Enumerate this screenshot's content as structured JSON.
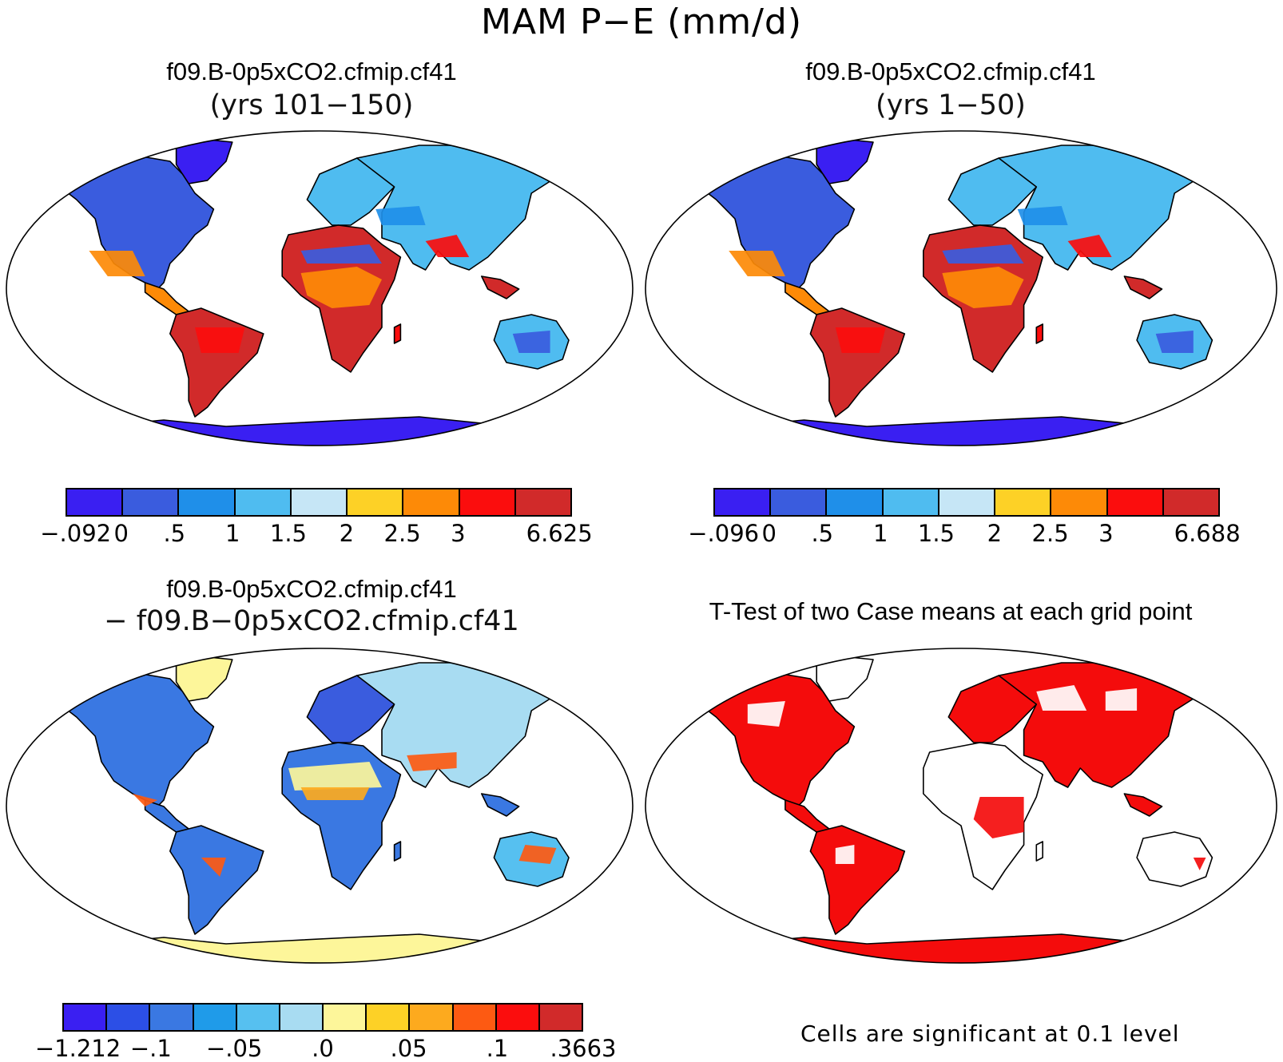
{
  "title": "MAM P−E (mm/d)",
  "panels": [
    {
      "id": "case1",
      "title": "f09.B-0p5xCO2.cfmip.cf41",
      "subtitle": "(yrs 101−150)",
      "colorbar": {
        "colors": [
          "#3a1ff2",
          "#3a5cde",
          "#1f8fe9",
          "#4fbcf0",
          "#c6e6f6",
          "#fdd126",
          "#fd8a07",
          "#fb0d0d",
          "#d12a2a"
        ],
        "labels": [
          "−.092",
          "0",
          ".5",
          "1",
          "1.5",
          "2",
          "2.5",
          "3",
          "6.625"
        ]
      }
    },
    {
      "id": "case2",
      "title": "f09.B-0p5xCO2.cfmip.cf41",
      "subtitle": "(yrs 1−50)",
      "colorbar": {
        "colors": [
          "#3a1ff2",
          "#3a5cde",
          "#1f8fe9",
          "#4fbcf0",
          "#c6e6f6",
          "#fdd126",
          "#fd8a07",
          "#fb0d0d",
          "#d12a2a"
        ],
        "labels": [
          "−.096",
          "0",
          ".5",
          "1",
          "1.5",
          "2",
          "2.5",
          "3",
          "6.688"
        ]
      }
    },
    {
      "id": "diff",
      "title": "f09.B-0p5xCO2.cfmip.cf41",
      "subtitle": "− f09.B−0p5xCO2.cfmip.cf41",
      "colorbar": {
        "colors": [
          "#3a1ff2",
          "#2c4fe6",
          "#3a78e2",
          "#1f9be9",
          "#56c0f0",
          "#a8dcf2",
          "#fdf69a",
          "#fdd126",
          "#fdaa1e",
          "#fd5a12",
          "#fb0d0d",
          "#d12a2a"
        ],
        "labels": [
          "−1.212",
          "−.1",
          "−.05",
          ".0",
          ".05",
          ".1",
          ".3663"
        ]
      }
    },
    {
      "id": "ttest",
      "title": "T-Test of two Case means at each grid point",
      "footnote": "Cells are significant at 0.1 level",
      "color": "#f40c0c"
    }
  ]
}
